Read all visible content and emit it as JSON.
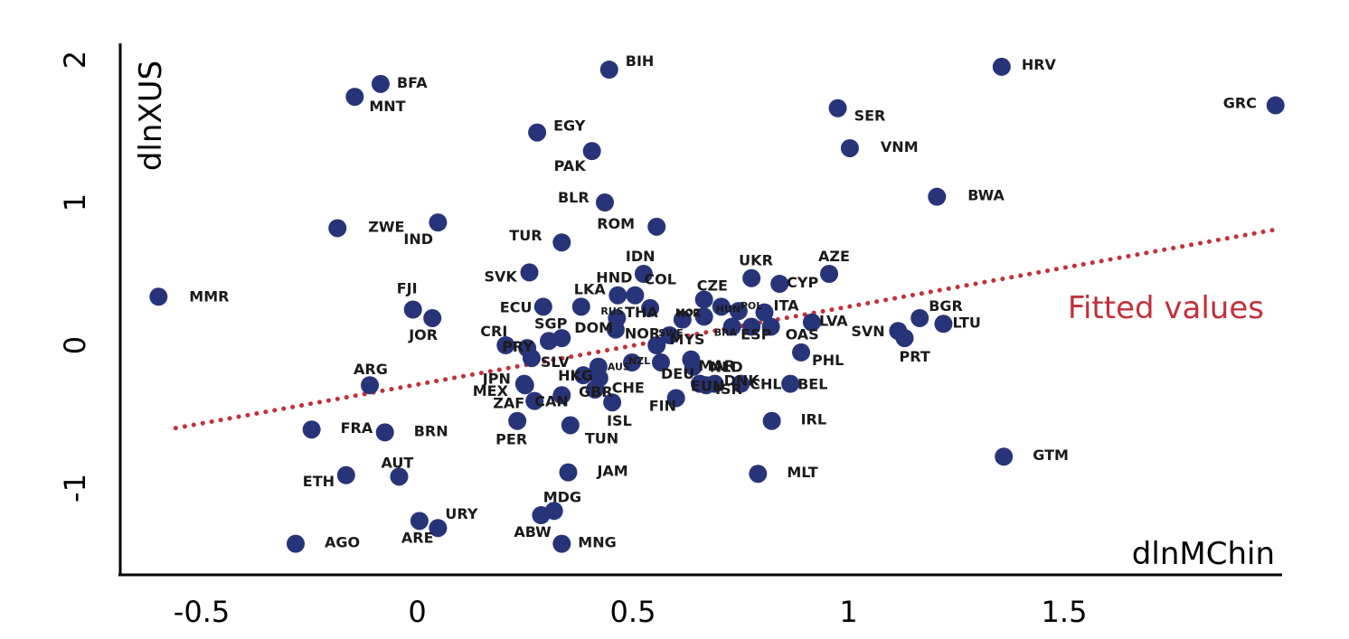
{
  "chart_data": {
    "type": "scatter",
    "title": "",
    "xlabel": "dlnMChin",
    "ylabel": "dlnXUS",
    "xlim": [
      -0.68,
      2.0
    ],
    "ylim": [
      -1.5,
      2.1
    ],
    "xticks": [
      -0.5,
      0,
      0.5,
      1,
      1.5
    ],
    "xtick_labels": [
      "-0.5",
      "0",
      "0.5",
      "1",
      "1.5"
    ],
    "yticks": [
      -1,
      0,
      1,
      2
    ],
    "ytick_labels": [
      "-1",
      "0",
      "1",
      "2"
    ],
    "grid": false,
    "fitted_line": {
      "label": "Fitted values",
      "x": [
        -0.56,
        1.99
      ],
      "y": [
        -0.58,
        0.81
      ],
      "color": "#c0313b"
    },
    "point_color": "#283479",
    "points": [
      {
        "label": "BIH",
        "x": 0.445,
        "y": 1.93
      },
      {
        "label": "HRV",
        "x": 1.355,
        "y": 1.95
      },
      {
        "label": "GRC",
        "x": 1.99,
        "y": 1.68
      },
      {
        "label": "BFA",
        "x": -0.085,
        "y": 1.83
      },
      {
        "label": "MNT",
        "x": -0.145,
        "y": 1.74
      },
      {
        "label": "SER",
        "x": 0.975,
        "y": 1.66
      },
      {
        "label": "EGY",
        "x": 0.278,
        "y": 1.49
      },
      {
        "label": "PAK",
        "x": 0.405,
        "y": 1.36
      },
      {
        "label": "VNM",
        "x": 1.003,
        "y": 1.38
      },
      {
        "label": "BWA",
        "x": 1.205,
        "y": 1.04
      },
      {
        "label": "BLR",
        "x": 0.435,
        "y": 1.0
      },
      {
        "label": "IND",
        "x": 0.048,
        "y": 0.86
      },
      {
        "label": "ZWE",
        "x": -0.185,
        "y": 0.82
      },
      {
        "label": "ROM",
        "x": 0.555,
        "y": 0.83
      },
      {
        "label": "TUR",
        "x": 0.335,
        "y": 0.72
      },
      {
        "label": "MMR",
        "x": -0.6,
        "y": 0.34
      },
      {
        "label": "SVK",
        "x": 0.26,
        "y": 0.51
      },
      {
        "label": "IDN",
        "x": 0.525,
        "y": 0.5
      },
      {
        "label": "AZE",
        "x": 0.955,
        "y": 0.5
      },
      {
        "label": "UKR",
        "x": 0.775,
        "y": 0.47
      },
      {
        "label": "CYP",
        "x": 0.84,
        "y": 0.43
      },
      {
        "label": "FJI",
        "x": -0.01,
        "y": 0.25
      },
      {
        "label": "JOR",
        "x": 0.035,
        "y": 0.19
      },
      {
        "label": "HND",
        "x": 0.465,
        "y": 0.35
      },
      {
        "label": "COL",
        "x": 0.505,
        "y": 0.35
      },
      {
        "label": "LKA",
        "x": 0.38,
        "y": 0.27
      },
      {
        "label": "ECU",
        "x": 0.292,
        "y": 0.27
      },
      {
        "label": "THA",
        "x": 0.54,
        "y": 0.26
      },
      {
        "label": "CZE",
        "x": 0.665,
        "y": 0.32
      },
      {
        "label": "HUN",
        "x": 0.705,
        "y": 0.27
      },
      {
        "label": "POL",
        "x": 0.745,
        "y": 0.24
      },
      {
        "label": "ITA",
        "x": 0.805,
        "y": 0.23
      },
      {
        "label": "RUS",
        "x": 0.463,
        "y": 0.19
      },
      {
        "label": "KOR",
        "x": 0.665,
        "y": 0.2
      },
      {
        "label": "MOZ",
        "x": 0.615,
        "y": 0.18
      },
      {
        "label": "BGR",
        "x": 1.165,
        "y": 0.19
      },
      {
        "label": "LTU",
        "x": 1.22,
        "y": 0.15
      },
      {
        "label": "LVA",
        "x": 0.915,
        "y": 0.16
      },
      {
        "label": "SVN",
        "x": 1.115,
        "y": 0.1
      },
      {
        "label": "PRT",
        "x": 1.13,
        "y": 0.05
      },
      {
        "label": "NOR",
        "x": 0.46,
        "y": 0.11
      },
      {
        "label": "DOM",
        "x": 0.335,
        "y": 0.05
      },
      {
        "label": "SGP",
        "x": 0.305,
        "y": 0.03
      },
      {
        "label": "PRY",
        "x": 0.255,
        "y": -0.02
      },
      {
        "label": "CRI",
        "x": 0.205,
        "y": 0.0
      },
      {
        "label": "BRA",
        "x": 0.73,
        "y": 0.13
      },
      {
        "label": "ESP",
        "x": 0.775,
        "y": 0.13
      },
      {
        "label": "MYS",
        "x": 0.585,
        "y": 0.07
      },
      {
        "label": "OAS",
        "x": 0.82,
        "y": 0.13
      },
      {
        "label": "SWE",
        "x": 0.555,
        "y": 0.0
      },
      {
        "label": "PHL",
        "x": 0.89,
        "y": -0.05
      },
      {
        "label": "SLV",
        "x": 0.265,
        "y": -0.09
      },
      {
        "label": "MAR",
        "x": 0.635,
        "y": -0.1
      },
      {
        "label": "NLD",
        "x": 0.64,
        "y": -0.15
      },
      {
        "label": "DEU",
        "x": 0.565,
        "y": -0.12
      },
      {
        "label": "AUS",
        "x": 0.42,
        "y": -0.15
      },
      {
        "label": "NZL",
        "x": 0.498,
        "y": -0.12
      },
      {
        "label": "EUN",
        "x": 0.655,
        "y": -0.27
      },
      {
        "label": "JPN",
        "x": 0.248,
        "y": -0.27
      },
      {
        "label": "HKG",
        "x": 0.385,
        "y": -0.21
      },
      {
        "label": "CHE",
        "x": 0.422,
        "y": -0.23
      },
      {
        "label": "CHL",
        "x": 0.75,
        "y": -0.27
      },
      {
        "label": "BEL",
        "x": 0.865,
        "y": -0.27
      },
      {
        "label": "ARG",
        "x": -0.11,
        "y": -0.28
      },
      {
        "label": "MEX",
        "x": 0.25,
        "y": -0.28
      },
      {
        "label": "CAN",
        "x": 0.335,
        "y": -0.35
      },
      {
        "label": "GBR",
        "x": 0.412,
        "y": -0.31
      },
      {
        "label": "FIN",
        "x": 0.6,
        "y": -0.37
      },
      {
        "label": "ISR",
        "x": 0.67,
        "y": -0.28
      },
      {
        "label": "DNK",
        "x": 0.69,
        "y": -0.27
      },
      {
        "label": "ZAF",
        "x": 0.272,
        "y": -0.39
      },
      {
        "label": "ISL",
        "x": 0.452,
        "y": -0.4
      },
      {
        "label": "IRL",
        "x": 0.822,
        "y": -0.53
      },
      {
        "label": "PER",
        "x": 0.232,
        "y": -0.53
      },
      {
        "label": "TUN",
        "x": 0.355,
        "y": -0.56
      },
      {
        "label": "FRA",
        "x": -0.245,
        "y": -0.59
      },
      {
        "label": "BRN",
        "x": -0.075,
        "y": -0.61
      },
      {
        "label": "GTM",
        "x": 1.36,
        "y": -0.78
      },
      {
        "label": "ETH",
        "x": -0.165,
        "y": -0.91
      },
      {
        "label": "AUT",
        "x": -0.042,
        "y": -0.92
      },
      {
        "label": "JAM",
        "x": 0.35,
        "y": -0.89
      },
      {
        "label": "MLT",
        "x": 0.79,
        "y": -0.9
      },
      {
        "label": "MDG",
        "x": 0.317,
        "y": -1.16
      },
      {
        "label": "ABW",
        "x": 0.287,
        "y": -1.19
      },
      {
        "label": "ARE",
        "x": 0.005,
        "y": -1.23
      },
      {
        "label": "URY",
        "x": 0.048,
        "y": -1.28
      },
      {
        "label": "AGO",
        "x": -0.282,
        "y": -1.39
      },
      {
        "label": "MNG",
        "x": 0.335,
        "y": -1.39
      }
    ]
  }
}
